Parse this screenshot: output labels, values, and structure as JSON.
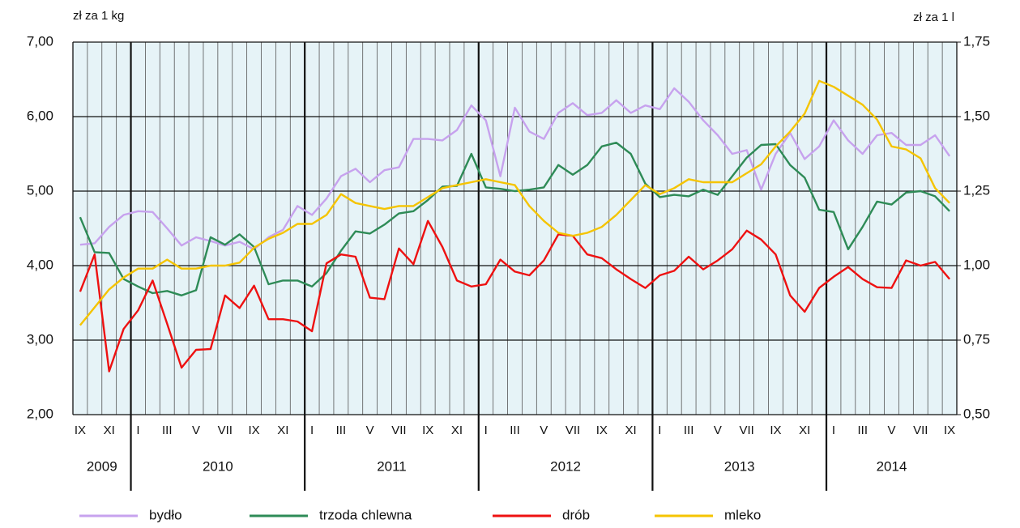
{
  "chart_data": {
    "type": "line",
    "y_axis_label": "zł za 1 kg",
    "y2_axis_label": "zł za 1 l",
    "categories": [
      "IX",
      null,
      "XI",
      null,
      "I",
      null,
      "III",
      null,
      "V",
      null,
      "VII",
      null,
      "IX",
      null,
      "XI",
      null,
      "I",
      null,
      "III",
      null,
      "V",
      null,
      "VII",
      null,
      "IX",
      null,
      "XI",
      null,
      "I",
      null,
      "III",
      null,
      "V",
      null,
      "VII",
      null,
      "IX",
      null,
      "XI",
      null,
      "I",
      null,
      "III",
      null,
      "V",
      null,
      "VII",
      null,
      "IX",
      null,
      "XI",
      null,
      "I",
      null,
      "III",
      null,
      "V",
      null,
      "VII",
      null,
      "IX"
    ],
    "year_labels": [
      "2009",
      "2010",
      "2011",
      "2012",
      "2013",
      "2014"
    ],
    "ylim": [
      2,
      7
    ],
    "yticks": [
      {
        "value": 2,
        "label": "2,00"
      },
      {
        "value": 3,
        "label": "3,00"
      },
      {
        "value": 4,
        "label": "4,00"
      },
      {
        "value": 5,
        "label": "5,00"
      },
      {
        "value": 6,
        "label": "6,00"
      },
      {
        "value": 7,
        "label": "7,00"
      }
    ],
    "y2lim": [
      0.5,
      1.75
    ],
    "y2ticks": [
      {
        "value": 0.5,
        "label": "0,50"
      },
      {
        "value": 0.75,
        "label": "0,75"
      },
      {
        "value": 1,
        "label": "1,00"
      },
      {
        "value": 1.25,
        "label": "1,25"
      },
      {
        "value": 1.5,
        "label": "1,50"
      },
      {
        "value": 1.75,
        "label": "1,75"
      }
    ],
    "grid": true,
    "series": [
      {
        "name": "bydło",
        "color": "#c7a2ee",
        "values": [
          4.28,
          4.3,
          4.52,
          4.68,
          4.73,
          4.72,
          4.5,
          4.27,
          4.38,
          4.33,
          4.27,
          4.32,
          4.22,
          4.38,
          4.48,
          4.8,
          4.68,
          4.9,
          5.2,
          5.3,
          5.12,
          5.28,
          5.32,
          5.7,
          5.7,
          5.68,
          5.82,
          6.15,
          5.95,
          5.2,
          6.12,
          5.8,
          5.7,
          6.05,
          6.18,
          6.02,
          6.05,
          6.22,
          6.05,
          6.15,
          6.1,
          6.38,
          6.2,
          5.95,
          5.75,
          5.5,
          5.55,
          5.02,
          5.5,
          5.78,
          5.43,
          5.6,
          5.95,
          5.68,
          5.5,
          5.75,
          5.78,
          5.62,
          5.62,
          5.75,
          5.47
        ]
      },
      {
        "name": "trzoda chlewna",
        "color": "#2e8b57",
        "values": [
          4.65,
          4.18,
          4.17,
          3.82,
          3.72,
          3.63,
          3.66,
          3.6,
          3.67,
          4.38,
          4.28,
          4.42,
          4.25,
          3.75,
          3.8,
          3.8,
          3.72,
          3.9,
          4.2,
          4.46,
          4.43,
          4.55,
          4.7,
          4.73,
          4.88,
          5.06,
          5.07,
          5.5,
          5.05,
          5.03,
          5.0,
          5.02,
          5.05,
          5.35,
          5.22,
          5.35,
          5.6,
          5.65,
          5.5,
          5.1,
          4.92,
          4.95,
          4.93,
          5.02,
          4.95,
          5.2,
          5.45,
          5.62,
          5.63,
          5.35,
          5.18,
          4.75,
          4.72,
          4.22,
          4.52,
          4.86,
          4.82,
          4.98,
          5.0,
          4.93,
          4.73
        ]
      },
      {
        "name": "drób",
        "color": "#ee1111",
        "values": [
          3.65,
          4.15,
          2.58,
          3.15,
          3.4,
          3.8,
          3.22,
          2.63,
          2.87,
          2.88,
          3.6,
          3.43,
          3.73,
          3.28,
          3.28,
          3.25,
          3.12,
          4.03,
          4.15,
          4.12,
          3.57,
          3.55,
          4.23,
          4.02,
          4.6,
          4.25,
          3.8,
          3.72,
          3.75,
          4.08,
          3.92,
          3.87,
          4.07,
          4.42,
          4.4,
          4.15,
          4.1,
          3.95,
          3.82,
          3.7,
          3.87,
          3.93,
          4.12,
          3.95,
          4.07,
          4.22,
          4.47,
          4.35,
          4.15,
          3.6,
          3.38,
          3.7,
          3.85,
          3.98,
          3.82,
          3.71,
          3.7,
          4.07,
          4.0,
          4.05,
          3.82
        ]
      },
      {
        "name": "mleko",
        "color": "#f5c400",
        "axis": "y2",
        "values": [
          0.8,
          0.86,
          0.92,
          0.96,
          0.99,
          0.99,
          1.02,
          0.99,
          0.99,
          1.0,
          1.0,
          1.01,
          1.06,
          1.09,
          1.11,
          1.14,
          1.14,
          1.17,
          1.24,
          1.21,
          1.2,
          1.19,
          1.2,
          1.2,
          1.23,
          1.26,
          1.27,
          1.28,
          1.29,
          1.28,
          1.27,
          1.2,
          1.15,
          1.11,
          1.1,
          1.11,
          1.13,
          1.17,
          1.22,
          1.27,
          1.24,
          1.26,
          1.29,
          1.28,
          1.28,
          1.28,
          1.31,
          1.34,
          1.4,
          1.45,
          1.51,
          1.62,
          1.6,
          1.57,
          1.54,
          1.49,
          1.4,
          1.39,
          1.36,
          1.26,
          1.21
        ]
      }
    ]
  }
}
